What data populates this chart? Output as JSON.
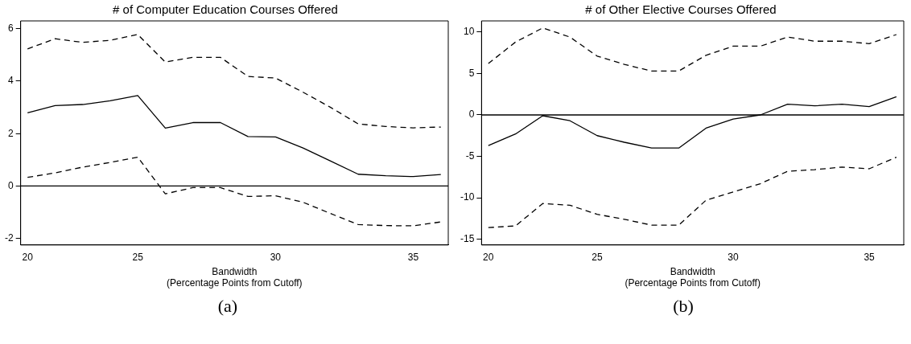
{
  "chart_data": [
    {
      "type": "line",
      "title": "# of Computer Education Courses Offered",
      "xlabel": "Bandwidth\n(Percentage Points from Cutoff)",
      "categories": [
        "20",
        null,
        null,
        null,
        "25",
        null,
        null,
        null,
        null,
        "30",
        null,
        null,
        null,
        null,
        "35",
        null
      ],
      "series": [
        {
          "color": "#000000",
          "line_style": "dashed",
          "values": [
            5.23,
            5.62,
            5.48,
            5.56,
            5.78,
            4.73,
            4.91,
            4.91,
            4.18,
            4.12,
            3.58,
            3.0,
            2.37,
            2.27,
            2.22,
            2.25
          ]
        },
        {
          "color": "#000000",
          "line_style": "solid",
          "values": [
            2.79,
            3.07,
            3.11,
            3.25,
            3.45,
            2.21,
            2.42,
            2.42,
            1.89,
            1.87,
            1.45,
            0.95,
            0.45,
            0.39,
            0.36,
            0.44
          ]
        },
        {
          "color": "#000000",
          "line_style": "dashed",
          "values": [
            0.33,
            0.5,
            0.72,
            0.9,
            1.1,
            -0.3,
            -0.06,
            -0.06,
            -0.4,
            -0.37,
            -0.62,
            -1.05,
            -1.47,
            -1.51,
            -1.52,
            -1.37
          ]
        }
      ],
      "ylim": [
        -2.25,
        6.3
      ],
      "yticks": [
        -2,
        0,
        2,
        4,
        6
      ],
      "grid": false,
      "legend": false,
      "marker": "none",
      "ref_lines": [
        {
          "axis": "y",
          "value": 0,
          "color": "#000000"
        }
      ],
      "annotations": [
        "(a)"
      ]
    },
    {
      "type": "line",
      "title": "# of Other Elective Courses Offered",
      "xlabel": "Bandwidth\n(Percentage Points from Cutoff)",
      "categories": [
        "20",
        null,
        null,
        null,
        "25",
        null,
        null,
        null,
        null,
        "30",
        null,
        null,
        null,
        null,
        "35",
        null
      ],
      "series": [
        {
          "color": "#000000",
          "line_style": "dashed",
          "values": [
            6.2,
            8.8,
            10.5,
            9.4,
            7.1,
            6.1,
            5.3,
            5.3,
            7.2,
            8.3,
            8.3,
            9.4,
            8.9,
            8.9,
            8.6,
            9.7
          ]
        },
        {
          "color": "#000000",
          "line_style": "solid",
          "values": [
            -3.7,
            -2.3,
            -0.1,
            -0.7,
            -2.5,
            -3.3,
            -4.0,
            -4.0,
            -1.6,
            -0.5,
            0,
            1.3,
            1.1,
            1.3,
            1.0,
            2.2
          ]
        },
        {
          "color": "#000000",
          "line_style": "dashed",
          "values": [
            -13.6,
            -13.4,
            -10.7,
            -10.9,
            -12.0,
            -12.6,
            -13.3,
            -13.3,
            -10.3,
            -9.3,
            -8.3,
            -6.8,
            -6.6,
            -6.3,
            -6.5,
            -5.1
          ]
        }
      ],
      "ylim": [
        -15.7,
        11.35
      ],
      "yticks": [
        -15,
        -10,
        -5,
        0,
        5,
        10
      ],
      "grid": false,
      "legend": false,
      "marker": "none",
      "ref_lines": [
        {
          "axis": "y",
          "value": 0,
          "color": "#000000"
        }
      ],
      "annotations": [
        "(b)"
      ]
    }
  ]
}
